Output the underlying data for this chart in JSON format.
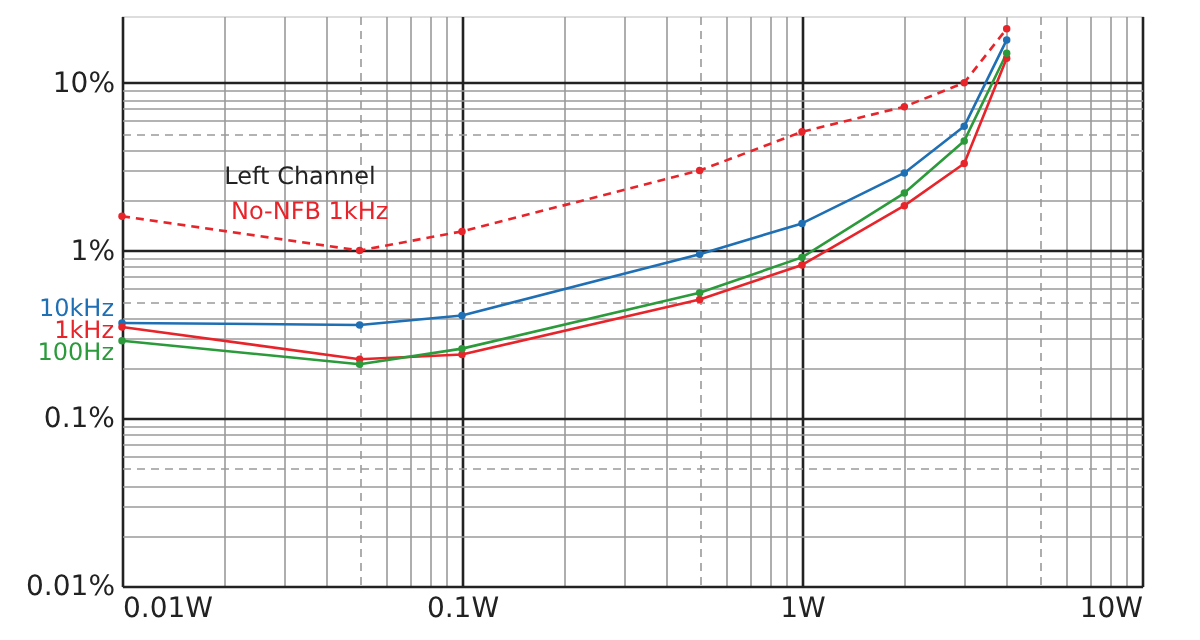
{
  "chart_data": {
    "type": "line",
    "log": "xy",
    "grid": true,
    "marker": "circle",
    "annotations": [
      "Left Channel"
    ],
    "x": [
      0.01,
      0.05,
      0.1,
      0.5,
      1,
      2,
      3,
      4
    ],
    "xlim": [
      0.01,
      10
    ],
    "xticks": [
      {
        "value": 0.01,
        "label": "0.01W"
      },
      {
        "value": 0.02,
        "label": null
      },
      {
        "value": 0.03,
        "label": null
      },
      {
        "value": 0.04,
        "label": null
      },
      {
        "value": 0.05,
        "label": null
      },
      {
        "value": 0.06,
        "label": null
      },
      {
        "value": 0.07,
        "label": null
      },
      {
        "value": 0.08,
        "label": null
      },
      {
        "value": 0.09,
        "label": null
      },
      {
        "value": 0.1,
        "label": "0.1W"
      },
      {
        "value": 0.2,
        "label": null
      },
      {
        "value": 0.3,
        "label": null
      },
      {
        "value": 0.4,
        "label": null
      },
      {
        "value": 0.5,
        "label": null
      },
      {
        "value": 0.6,
        "label": null
      },
      {
        "value": 0.7,
        "label": null
      },
      {
        "value": 0.8,
        "label": null
      },
      {
        "value": 0.9,
        "label": null
      },
      {
        "value": 1,
        "label": "1W"
      },
      {
        "value": 2,
        "label": null
      },
      {
        "value": 3,
        "label": null
      },
      {
        "value": 4,
        "label": null
      },
      {
        "value": 5,
        "label": null
      },
      {
        "value": 6,
        "label": null
      },
      {
        "value": 7,
        "label": null
      },
      {
        "value": 8,
        "label": null
      },
      {
        "value": 9,
        "label": null
      },
      {
        "value": 10,
        "label": "10W"
      }
    ],
    "ylim": [
      0.01,
      25
    ],
    "yticks": [
      {
        "value": 0.01,
        "label": "0.01%"
      },
      {
        "value": 0.02,
        "label": null
      },
      {
        "value": 0.03,
        "label": null
      },
      {
        "value": 0.04,
        "label": null
      },
      {
        "value": 0.05,
        "label": null
      },
      {
        "value": 0.06,
        "label": null
      },
      {
        "value": 0.07,
        "label": null
      },
      {
        "value": 0.08,
        "label": null
      },
      {
        "value": 0.09,
        "label": null
      },
      {
        "value": 0.1,
        "label": "0.1%"
      },
      {
        "value": 0.2,
        "label": null
      },
      {
        "value": 0.3,
        "label": null
      },
      {
        "value": 0.4,
        "label": null
      },
      {
        "value": 0.5,
        "label": null
      },
      {
        "value": 0.6,
        "label": null
      },
      {
        "value": 0.7,
        "label": null
      },
      {
        "value": 0.8,
        "label": null
      },
      {
        "value": 0.9,
        "label": null
      },
      {
        "value": 1,
        "label": "1%"
      },
      {
        "value": 2,
        "label": null
      },
      {
        "value": 3,
        "label": null
      },
      {
        "value": 4,
        "label": null
      },
      {
        "value": 5,
        "label": null
      },
      {
        "value": 6,
        "label": null
      },
      {
        "value": 7,
        "label": null
      },
      {
        "value": 8,
        "label": null
      },
      {
        "value": 9,
        "label": null
      },
      {
        "value": 10,
        "label": "10%"
      }
    ],
    "series": [
      {
        "name": "10kHz",
        "color": "#1f6fb5",
        "values": [
          0.37,
          0.36,
          0.41,
          0.95,
          1.45,
          2.9,
          5.5,
          18
        ]
      },
      {
        "name": "1kHz",
        "color": "#e8242b",
        "values": [
          0.35,
          0.225,
          0.24,
          0.51,
          0.82,
          1.85,
          3.3,
          14
        ]
      },
      {
        "name": "100Hz",
        "color": "#2a9a3a",
        "values": [
          0.29,
          0.21,
          0.26,
          0.56,
          0.91,
          2.2,
          4.5,
          15
        ]
      },
      {
        "name": "No-NFB 1kHz",
        "color": "#e8242b",
        "line_style": "dashed",
        "values": [
          1.6,
          1.0,
          1.3,
          3.0,
          5.1,
          7.2,
          10,
          21
        ]
      }
    ]
  }
}
